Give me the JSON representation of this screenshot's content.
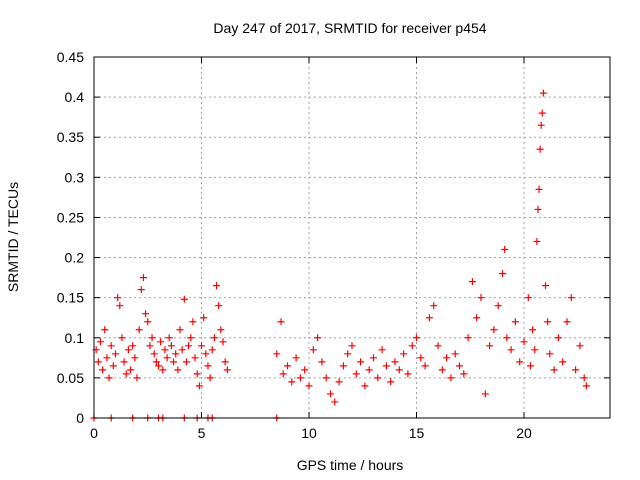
{
  "chart_data": {
    "type": "scatter",
    "title": "Day 247 of 2017, SRMTID for receiver p454",
    "xlabel": "GPS time / hours",
    "ylabel": "SRMTID / TECUs",
    "xlim": [
      0,
      24
    ],
    "ylim": [
      0,
      0.45
    ],
    "xticks": [
      0,
      5,
      10,
      15,
      20
    ],
    "xtick_labels": [
      "0",
      "5",
      "10",
      "15",
      "20"
    ],
    "yticks": [
      0,
      0.05,
      0.1,
      0.15,
      0.2,
      0.25,
      0.3,
      0.35,
      0.4,
      0.45
    ],
    "ytick_labels": [
      "0",
      "0.05",
      "0.1",
      "0.15",
      "0.2",
      "0.25",
      "0.3",
      "0.35",
      "0.4",
      "0.45"
    ],
    "grid": true,
    "marker": "+",
    "color": "#ff0000",
    "series": [
      {
        "name": "SRMTID",
        "points": [
          [
            0.1,
            0.085
          ],
          [
            0.2,
            0.07
          ],
          [
            0.3,
            0.095
          ],
          [
            0.4,
            0.06
          ],
          [
            0.5,
            0.11
          ],
          [
            0.6,
            0.075
          ],
          [
            0.7,
            0.05
          ],
          [
            0.8,
            0.09
          ],
          [
            0.9,
            0.065
          ],
          [
            1.0,
            0.08
          ],
          [
            1.1,
            0.15
          ],
          [
            1.2,
            0.14
          ],
          [
            1.3,
            0.1
          ],
          [
            1.4,
            0.07
          ],
          [
            1.5,
            0.055
          ],
          [
            1.6,
            0.085
          ],
          [
            1.7,
            0.06
          ],
          [
            1.8,
            0.09
          ],
          [
            1.9,
            0.075
          ],
          [
            2.0,
            0.05
          ],
          [
            2.1,
            0.11
          ],
          [
            2.2,
            0.16
          ],
          [
            2.3,
            0.175
          ],
          [
            2.4,
            0.13
          ],
          [
            2.5,
            0.12
          ],
          [
            2.6,
            0.09
          ],
          [
            2.7,
            0.1
          ],
          [
            2.8,
            0.08
          ],
          [
            2.9,
            0.07
          ],
          [
            3.0,
            0.065
          ],
          [
            3.1,
            0.095
          ],
          [
            3.2,
            0.06
          ],
          [
            3.3,
            0.085
          ],
          [
            3.4,
            0.075
          ],
          [
            3.5,
            0.1
          ],
          [
            3.6,
            0.09
          ],
          [
            3.7,
            0.07
          ],
          [
            3.8,
            0.08
          ],
          [
            3.9,
            0.06
          ],
          [
            4.0,
            0.11
          ],
          [
            4.1,
            0.085
          ],
          [
            4.2,
            0.148
          ],
          [
            4.3,
            0.07
          ],
          [
            4.4,
            0.09
          ],
          [
            4.5,
            0.1
          ],
          [
            4.6,
            0.12
          ],
          [
            4.7,
            0.075
          ],
          [
            4.8,
            0.055
          ],
          [
            4.9,
            0.04
          ],
          [
            5.0,
            0.09
          ],
          [
            5.1,
            0.125
          ],
          [
            5.2,
            0.08
          ],
          [
            5.3,
            0.065
          ],
          [
            5.4,
            0.05
          ],
          [
            5.5,
            0.085
          ],
          [
            5.6,
            0.1
          ],
          [
            5.7,
            0.165
          ],
          [
            5.8,
            0.14
          ],
          [
            5.9,
            0.11
          ],
          [
            6.0,
            0.095
          ],
          [
            6.1,
            0.07
          ],
          [
            6.2,
            0.06
          ],
          [
            0.0,
            0.0
          ],
          [
            0.8,
            0.0
          ],
          [
            1.8,
            0.0
          ],
          [
            2.5,
            0.0
          ],
          [
            3.0,
            0.0
          ],
          [
            3.2,
            0.0
          ],
          [
            4.2,
            0.0
          ],
          [
            4.8,
            0.0
          ],
          [
            5.3,
            0.0
          ],
          [
            5.5,
            0.0
          ],
          [
            8.5,
            0.0
          ],
          [
            8.5,
            0.08
          ],
          [
            8.7,
            0.12
          ],
          [
            8.8,
            0.055
          ],
          [
            9.0,
            0.065
          ],
          [
            9.2,
            0.045
          ],
          [
            9.4,
            0.075
          ],
          [
            9.6,
            0.05
          ],
          [
            9.8,
            0.06
          ],
          [
            10.0,
            0.04
          ],
          [
            10.2,
            0.085
          ],
          [
            10.4,
            0.1
          ],
          [
            10.6,
            0.07
          ],
          [
            10.8,
            0.05
          ],
          [
            11.0,
            0.03
          ],
          [
            11.2,
            0.02
          ],
          [
            11.4,
            0.045
          ],
          [
            11.6,
            0.065
          ],
          [
            11.8,
            0.08
          ],
          [
            12.0,
            0.09
          ],
          [
            12.2,
            0.055
          ],
          [
            12.4,
            0.07
          ],
          [
            12.6,
            0.04
          ],
          [
            12.8,
            0.06
          ],
          [
            13.0,
            0.075
          ],
          [
            13.2,
            0.05
          ],
          [
            13.4,
            0.085
          ],
          [
            13.6,
            0.065
          ],
          [
            13.8,
            0.045
          ],
          [
            14.0,
            0.07
          ],
          [
            14.2,
            0.06
          ],
          [
            14.4,
            0.08
          ],
          [
            14.6,
            0.055
          ],
          [
            14.8,
            0.09
          ],
          [
            15.0,
            0.1
          ],
          [
            15.2,
            0.075
          ],
          [
            15.4,
            0.065
          ],
          [
            15.6,
            0.125
          ],
          [
            15.8,
            0.14
          ],
          [
            16.0,
            0.09
          ],
          [
            16.2,
            0.06
          ],
          [
            16.4,
            0.075
          ],
          [
            16.6,
            0.05
          ],
          [
            16.8,
            0.08
          ],
          [
            17.0,
            0.065
          ],
          [
            17.2,
            0.055
          ],
          [
            17.4,
            0.1
          ],
          [
            17.6,
            0.17
          ],
          [
            17.8,
            0.125
          ],
          [
            18.0,
            0.15
          ],
          [
            18.2,
            0.03
          ],
          [
            18.4,
            0.09
          ],
          [
            18.6,
            0.11
          ],
          [
            18.8,
            0.14
          ],
          [
            19.0,
            0.18
          ],
          [
            19.1,
            0.21
          ],
          [
            19.2,
            0.1
          ],
          [
            19.4,
            0.085
          ],
          [
            19.6,
            0.12
          ],
          [
            19.8,
            0.07
          ],
          [
            20.0,
            0.095
          ],
          [
            20.2,
            0.15
          ],
          [
            20.3,
            0.065
          ],
          [
            20.4,
            0.11
          ],
          [
            20.5,
            0.085
          ],
          [
            20.6,
            0.22
          ],
          [
            20.65,
            0.26
          ],
          [
            20.7,
            0.285
          ],
          [
            20.75,
            0.335
          ],
          [
            20.8,
            0.365
          ],
          [
            20.85,
            0.38
          ],
          [
            20.9,
            0.405
          ],
          [
            21.0,
            0.165
          ],
          [
            21.1,
            0.12
          ],
          [
            21.2,
            0.08
          ],
          [
            21.4,
            0.06
          ],
          [
            21.6,
            0.1
          ],
          [
            21.8,
            0.07
          ],
          [
            22.0,
            0.12
          ],
          [
            22.2,
            0.15
          ],
          [
            22.4,
            0.06
          ],
          [
            22.6,
            0.09
          ],
          [
            22.8,
            0.05
          ],
          [
            22.9,
            0.04
          ]
        ]
      }
    ]
  }
}
